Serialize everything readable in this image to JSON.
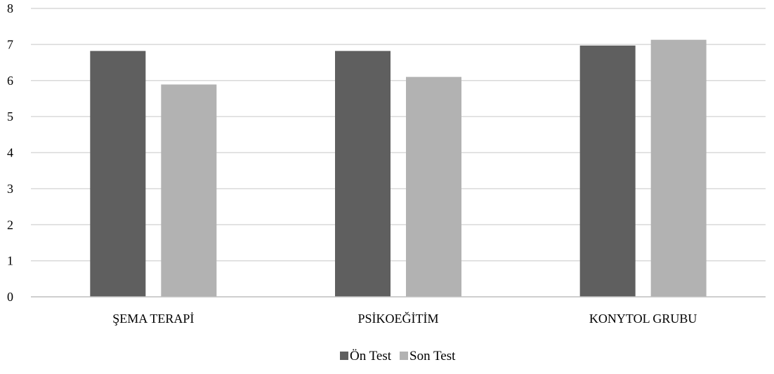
{
  "chart_data": {
    "type": "bar",
    "title": "",
    "xlabel": "",
    "ylabel": "",
    "categories": [
      "ŞEMA TERAPİ",
      "PSİKOEĞİTİM",
      "KONYTOL GRUBU"
    ],
    "series": [
      {
        "name": "Ön Test",
        "values": [
          6.82,
          6.82,
          6.97
        ],
        "color": "#5f5f5f"
      },
      {
        "name": "Son Test",
        "values": [
          5.89,
          6.1,
          7.13
        ],
        "color": "#b2b2b2"
      }
    ],
    "ylim": [
      0,
      8
    ],
    "yticks": [
      "0",
      "1",
      "2",
      "3",
      "4",
      "5",
      "6",
      "7",
      "8"
    ],
    "grid": true,
    "legend_position": "bottom"
  },
  "colors": {
    "grid": "#d9d9d9",
    "axis": "#bfbfbf"
  }
}
